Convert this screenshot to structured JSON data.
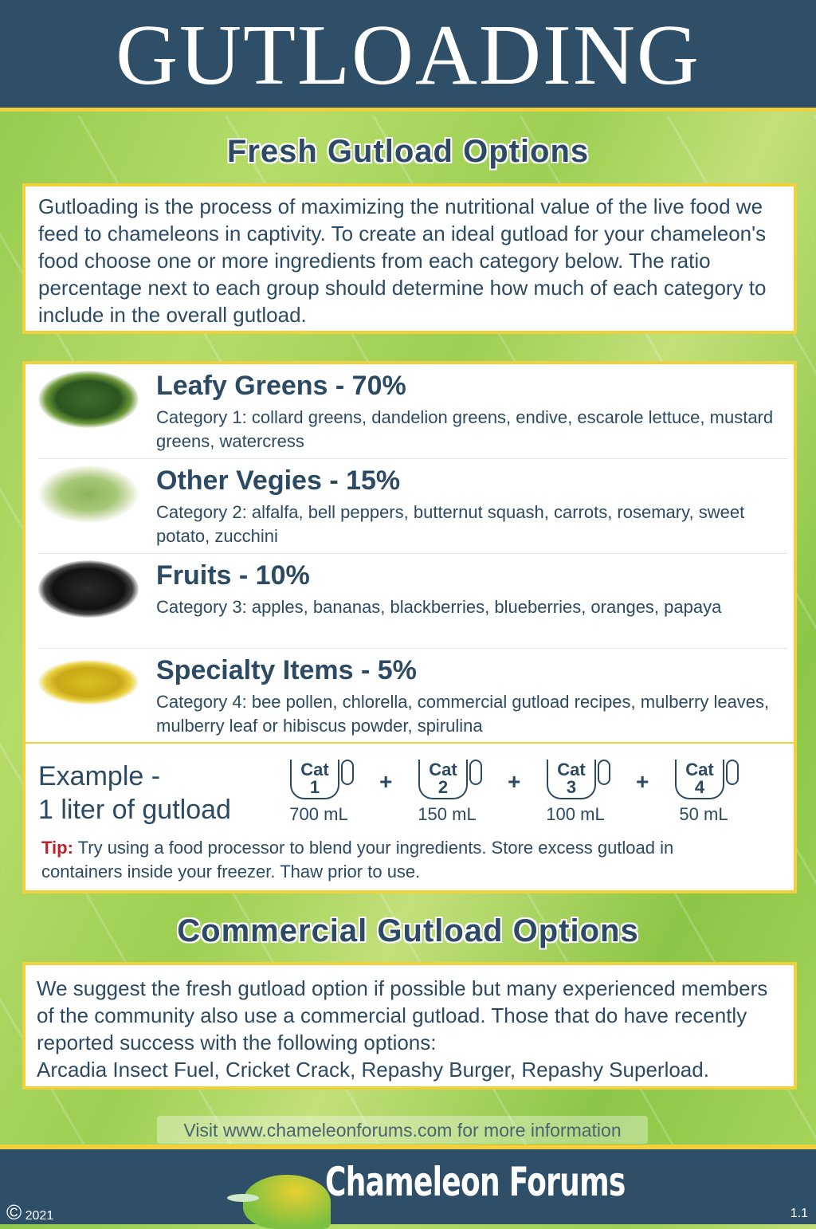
{
  "header": {
    "title": "GUTLOADING"
  },
  "fresh": {
    "title": "Fresh Gutload Options",
    "intro": "Gutloading is the process of maximizing the nutritional value of the live food we feed to chameleons in captivity.  To create an ideal gutload for your chameleon's food choose one or more ingredients from each category below.  The ratio percentage next to each group should determine how much of each category to include in the overall gutload.",
    "categories": [
      {
        "title": "Leafy Greens - 70%",
        "desc": "Category 1: collard greens, dandelion greens, endive, escarole lettuce, mustard greens, watercress",
        "image": "leafy-greens-photo"
      },
      {
        "title": "Other Vegies - 15%",
        "desc": "Category 2: alfalfa, bell peppers, butternut squash, carrots, rosemary, sweet potato, zucchini",
        "image": "alfalfa-sprouts-photo"
      },
      {
        "title": "Fruits - 10%",
        "desc": "Category 3: apples, bananas, blackberries, blueberries, oranges, papaya",
        "image": "blackberries-photo"
      },
      {
        "title": "Specialty Items - 5%",
        "desc": "Category 4: bee pollen, chlorella, commercial gutload recipes, mulberry leaves, mulberry leaf or hibiscus powder, spirulina",
        "image": "bee-pollen-photo"
      }
    ],
    "example": {
      "line1": "Example -",
      "line2": "1 liter of gutload",
      "cups": [
        {
          "label": "Cat",
          "num": "1",
          "amount": "700 mL"
        },
        {
          "label": "Cat",
          "num": "2",
          "amount": "150 mL"
        },
        {
          "label": "Cat",
          "num": "3",
          "amount": "100 mL"
        },
        {
          "label": "Cat",
          "num": "4",
          "amount": "50 mL"
        }
      ],
      "plus": "+",
      "tip_label": "Tip:",
      "tip": " Try using a food processor to blend your ingredients.  Store excess gutload in containers inside your freezer.  Thaw prior to use."
    }
  },
  "commercial": {
    "title": "Commercial Gutload Options",
    "text": "We suggest the fresh gutload option if possible but many experienced members of the community also use a commercial gutload.  Those that do have recently reported success with the following options:",
    "options": "Arcadia Insect Fuel, Cricket Crack, Repashy Burger, Repashy Superload."
  },
  "visit": "Visit www.chameleonforums.com for more information",
  "footer": {
    "copyright": "©",
    "year": "2021",
    "logo_text": "Chameleon Forums",
    "version": "1.1"
  },
  "colors": {
    "navy": "#2f4f69",
    "accent": "#f0d03c",
    "tip": "#c0202a"
  }
}
